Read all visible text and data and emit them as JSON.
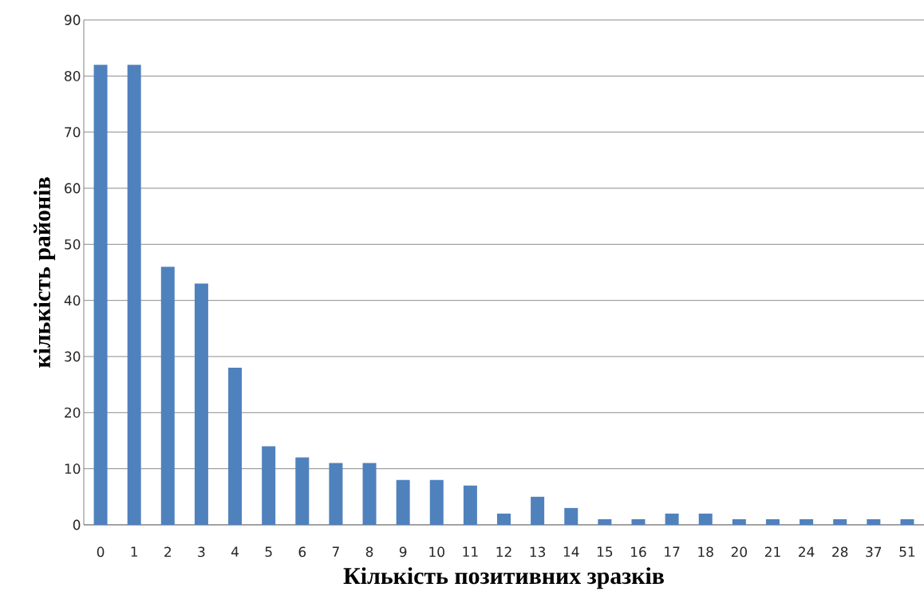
{
  "chart_data": {
    "type": "bar",
    "xlabel": "Кількість позитивних зразків",
    "ylabel": "кількість районів",
    "categories": [
      "0",
      "1",
      "2",
      "3",
      "4",
      "5",
      "6",
      "7",
      "8",
      "9",
      "10",
      "11",
      "12",
      "13",
      "14",
      "15",
      "16",
      "17",
      "18",
      "20",
      "21",
      "24",
      "28",
      "37",
      "51"
    ],
    "values": [
      82,
      82,
      46,
      43,
      28,
      14,
      12,
      11,
      11,
      8,
      8,
      7,
      2,
      5,
      3,
      1,
      1,
      2,
      2,
      1,
      1,
      1,
      1,
      1,
      1
    ],
    "color": "#4f81bd",
    "ylim": [
      0,
      90
    ],
    "yticks": [
      0,
      10,
      20,
      30,
      40,
      50,
      60,
      70,
      80,
      90
    ],
    "grid": "y"
  }
}
